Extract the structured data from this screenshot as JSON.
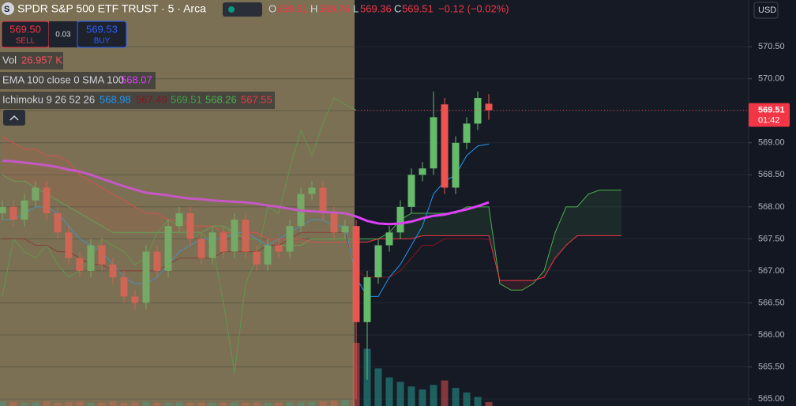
{
  "header": {
    "title": "SPDR S&P 500 ETF TRUST · 5 · Arca",
    "o": "O",
    "h": "H",
    "l": "L",
    "c": "C",
    "change": "−0.12 (−0.02%)",
    "sell_price": "569.50",
    "sell": "SELL",
    "spread": "0.03",
    "buy_price": "569.53",
    "buy": "BUY",
    "vol": "Vol",
    "vol_value": "26.957 K",
    "ema_label": "EMA 100 close 0 SMA 100",
    "ichimoku_label": "Ichimoku 9 26 52 26",
    "currency": "USD",
    "countdown": "01:42"
  },
  "chart_data": {
    "type": "candlestick",
    "up_color": "#66bb6a",
    "down_color": "#ef5350",
    "open": [
      567.9,
      568.0,
      567.8,
      568.1,
      568.3,
      567.9,
      567.6,
      567.2,
      567.0,
      567.4,
      567.1,
      566.9,
      566.6,
      566.5,
      567.3,
      567.0,
      567.7,
      567.9,
      567.5,
      567.2,
      567.6,
      567.3,
      567.8,
      567.3,
      567.1,
      567.4,
      567.3,
      567.7,
      568.2,
      568.3,
      567.9,
      567.6,
      567.7,
      566.2,
      566.9,
      567.4,
      567.6,
      568.0,
      568.5,
      568.6,
      569.6,
      568.3,
      569.0,
      569.3,
      569.61
    ],
    "high": [
      568.1,
      568.1,
      568.2,
      568.4,
      568.4,
      568.0,
      567.7,
      567.3,
      567.5,
      567.5,
      567.2,
      567.0,
      566.7,
      567.4,
      567.4,
      567.8,
      568.0,
      568.0,
      567.6,
      567.7,
      567.7,
      567.9,
      567.9,
      567.4,
      567.5,
      567.5,
      567.8,
      568.3,
      568.4,
      568.4,
      568.0,
      567.8,
      567.8,
      567.0,
      567.5,
      567.7,
      568.1,
      568.6,
      568.7,
      569.8,
      569.7,
      569.1,
      569.4,
      569.8,
      569.76
    ],
    "low": [
      567.8,
      567.7,
      567.7,
      568.0,
      567.8,
      567.5,
      567.1,
      566.9,
      566.9,
      567.0,
      566.8,
      566.5,
      566.4,
      566.4,
      566.9,
      566.9,
      567.6,
      567.4,
      567.1,
      567.1,
      567.2,
      567.2,
      567.2,
      567.0,
      567.0,
      567.2,
      567.2,
      567.6,
      568.1,
      567.8,
      567.5,
      567.5,
      565.0,
      565.3,
      566.8,
      567.3,
      567.5,
      567.9,
      568.4,
      568.5,
      568.2,
      568.2,
      568.9,
      569.2,
      569.36
    ],
    "close": [
      568.0,
      567.8,
      568.1,
      568.3,
      567.9,
      567.6,
      567.2,
      567.0,
      567.4,
      567.1,
      566.9,
      566.6,
      566.5,
      567.3,
      567.0,
      567.7,
      567.9,
      567.5,
      567.2,
      567.6,
      567.3,
      567.8,
      567.3,
      567.1,
      567.4,
      567.3,
      567.7,
      568.2,
      568.3,
      567.9,
      567.6,
      567.7,
      566.2,
      566.9,
      567.4,
      567.6,
      568.0,
      568.5,
      568.6,
      569.4,
      568.3,
      569.0,
      569.3,
      569.7,
      569.51
    ],
    "volume": [
      30,
      28,
      22,
      24,
      30,
      22,
      25,
      30,
      22,
      24,
      30,
      22,
      24,
      30,
      22,
      22,
      24,
      22,
      24,
      22,
      22,
      24,
      22,
      24,
      22,
      22,
      24,
      26,
      28,
      32,
      34,
      40,
      420,
      380,
      250,
      190,
      160,
      130,
      110,
      140,
      170,
      120,
      90,
      60,
      26.957
    ],
    "ema": {
      "color": "#e040fb",
      "values": [
        568.72,
        568.71,
        568.69,
        568.67,
        568.65,
        568.62,
        568.58,
        568.55,
        568.5,
        568.44,
        568.38,
        568.32,
        568.27,
        568.22,
        568.2,
        568.18,
        568.15,
        568.13,
        568.12,
        568.1,
        568.09,
        568.08,
        568.07,
        568.05,
        568.02,
        568.0,
        567.97,
        567.94,
        567.93,
        567.92,
        567.91,
        567.9,
        567.85,
        567.78,
        567.74,
        567.73,
        567.74,
        567.77,
        567.82,
        567.86,
        567.88,
        567.92,
        567.96,
        568.01,
        568.07
      ]
    },
    "conversion": {
      "color": "#2196f3",
      "values": [
        567.8,
        567.8,
        567.9,
        568.0,
        568.0,
        567.9,
        567.7,
        567.5,
        567.4,
        567.3,
        567.1,
        566.9,
        566.8,
        566.8,
        566.9,
        567.1,
        567.3,
        567.4,
        567.5,
        567.5,
        567.5,
        567.6,
        567.6,
        567.5,
        567.4,
        567.5,
        567.6,
        567.7,
        567.8,
        567.8,
        567.7,
        567.7,
        566.9,
        566.6,
        566.6,
        566.9,
        567.1,
        567.4,
        567.7,
        568.2,
        568.4,
        568.5,
        568.8,
        568.95,
        568.98
      ]
    },
    "base": {
      "color": "#801922",
      "values": [
        567.5,
        567.5,
        567.5,
        567.4,
        567.4,
        567.3,
        567.3,
        567.2,
        567.1,
        567.1,
        567.0,
        567.0,
        567.0,
        567.0,
        567.0,
        567.1,
        567.2,
        567.2,
        567.2,
        567.2,
        567.3,
        567.3,
        567.3,
        567.3,
        567.4,
        567.4,
        567.5,
        567.6,
        567.6,
        567.6,
        567.6,
        567.6,
        567.0,
        566.9,
        566.9,
        566.9,
        567.0,
        567.2,
        567.4,
        567.4,
        567.5,
        567.5,
        567.5,
        567.5,
        567.49
      ]
    },
    "lagging": {
      "color": "#43a047",
      "values": [
        566.6,
        567.5,
        567.3,
        567.2,
        567.4,
        567.1,
        566.9,
        567.0,
        567.2,
        567.5,
        567.4,
        567.3,
        567.1,
        567.2,
        567.6,
        567.8,
        567.7,
        567.5,
        567.6,
        567.4,
        566.5,
        565.4,
        566.8,
        567.2,
        568.0,
        567.9,
        568.6,
        569.2,
        568.8,
        569.3,
        569.7,
        569.6,
        569.51
      ]
    },
    "span_a": {
      "color": "#4caf50",
      "values": [
        568.5,
        568.4,
        568.4,
        568.3,
        568.2,
        568.1,
        568.0,
        567.9,
        567.8,
        567.7,
        567.6,
        567.6,
        567.6,
        567.6,
        567.6,
        567.6,
        567.6,
        567.6,
        567.6,
        567.7,
        567.7,
        567.6,
        567.5,
        567.5,
        567.4,
        567.4,
        567.4,
        567.4,
        567.5,
        567.5,
        567.5,
        567.5,
        567.5,
        567.5,
        567.5,
        567.6,
        567.8,
        567.9,
        567.9,
        567.9,
        567.9,
        567.9,
        568.0,
        568.0,
        568.0,
        566.8,
        566.7,
        566.7,
        566.8,
        567.0,
        567.6,
        568.0,
        568.0,
        568.2,
        568.26,
        568.26,
        568.26
      ]
    },
    "span_b": {
      "color": "#f23645",
      "values": [
        569.1,
        569.0,
        568.9,
        568.9,
        568.8,
        568.8,
        568.7,
        568.5,
        568.4,
        568.3,
        568.2,
        568.1,
        568.0,
        567.9,
        567.9,
        567.8,
        567.8,
        567.7,
        567.7,
        567.7,
        567.6,
        567.6,
        567.6,
        567.6,
        567.5,
        567.5,
        567.5,
        567.5,
        567.45,
        567.45,
        567.45,
        567.45,
        567.45,
        567.45,
        567.5,
        567.5,
        567.5,
        567.5,
        567.55,
        567.55,
        567.55,
        567.55,
        567.55,
        567.55,
        567.55,
        566.85,
        566.85,
        566.85,
        566.85,
        566.9,
        567.2,
        567.4,
        567.55,
        567.55,
        567.55,
        567.55,
        567.55
      ]
    },
    "ylim": [
      564.89,
      571.23
    ],
    "yticks": [
      {
        "value": 565,
        "label": "565.00"
      },
      {
        "value": 565.5,
        "label": "565.50"
      },
      {
        "value": 566,
        "label": "566.00"
      },
      {
        "value": 566.5,
        "label": "566.50"
      },
      {
        "value": 567,
        "label": "567.00"
      },
      {
        "value": 567.5,
        "label": "567.50"
      },
      {
        "value": 568,
        "label": "568.00"
      },
      {
        "value": 568.5,
        "label": "568.50"
      },
      {
        "value": 569,
        "label": "569.00"
      },
      {
        "value": 569.5,
        "label": "569.50"
      },
      {
        "value": 570,
        "label": "570.00"
      },
      {
        "value": 570.5,
        "label": "570.50"
      }
    ],
    "grid": true
  }
}
